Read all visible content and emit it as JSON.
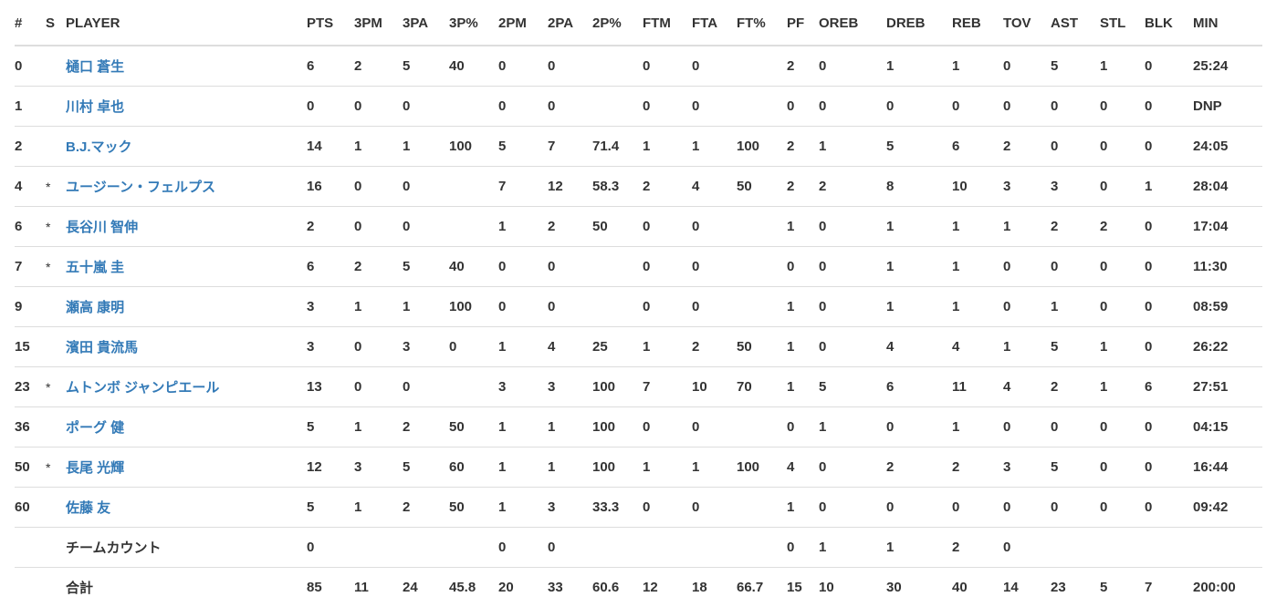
{
  "columns": [
    "#",
    "S",
    "PLAYER",
    "PTS",
    "3PM",
    "3PA",
    "3P%",
    "2PM",
    "2PA",
    "2P%",
    "FTM",
    "FTA",
    "FT%",
    "PF",
    "OREB",
    "DREB",
    "REB",
    "TOV",
    "AST",
    "STL",
    "BLK",
    "MIN"
  ],
  "link_color": "#337ab7",
  "rows": [
    {
      "no": "0",
      "s": "",
      "player": "樋口 蒼生",
      "link": true,
      "stats": [
        "6",
        "2",
        "5",
        "40",
        "0",
        "0",
        "",
        "0",
        "0",
        "",
        "2",
        "0",
        "1",
        "1",
        "0",
        "5",
        "1",
        "0",
        "25:24"
      ]
    },
    {
      "no": "1",
      "s": "",
      "player": "川村 卓也",
      "link": true,
      "stats": [
        "0",
        "0",
        "0",
        "",
        "0",
        "0",
        "",
        "0",
        "0",
        "",
        "0",
        "0",
        "0",
        "0",
        "0",
        "0",
        "0",
        "0",
        "DNP"
      ]
    },
    {
      "no": "2",
      "s": "",
      "player": "B.J.マック",
      "link": true,
      "stats": [
        "14",
        "1",
        "1",
        "100",
        "5",
        "7",
        "71.4",
        "1",
        "1",
        "100",
        "2",
        "1",
        "5",
        "6",
        "2",
        "0",
        "0",
        "0",
        "24:05"
      ]
    },
    {
      "no": "4",
      "s": "*",
      "player": "ユージーン・フェルプス",
      "link": true,
      "stats": [
        "16",
        "0",
        "0",
        "",
        "7",
        "12",
        "58.3",
        "2",
        "4",
        "50",
        "2",
        "2",
        "8",
        "10",
        "3",
        "3",
        "0",
        "1",
        "28:04"
      ]
    },
    {
      "no": "6",
      "s": "*",
      "player": "長谷川 智伸",
      "link": true,
      "stats": [
        "2",
        "0",
        "0",
        "",
        "1",
        "2",
        "50",
        "0",
        "0",
        "",
        "1",
        "0",
        "1",
        "1",
        "1",
        "2",
        "2",
        "0",
        "17:04"
      ]
    },
    {
      "no": "7",
      "s": "*",
      "player": "五十嵐 圭",
      "link": true,
      "stats": [
        "6",
        "2",
        "5",
        "40",
        "0",
        "0",
        "",
        "0",
        "0",
        "",
        "0",
        "0",
        "1",
        "1",
        "0",
        "0",
        "0",
        "0",
        "11:30"
      ]
    },
    {
      "no": "9",
      "s": "",
      "player": "瀬高 康明",
      "link": true,
      "stats": [
        "3",
        "1",
        "1",
        "100",
        "0",
        "0",
        "",
        "0",
        "0",
        "",
        "1",
        "0",
        "1",
        "1",
        "0",
        "1",
        "0",
        "0",
        "08:59"
      ]
    },
    {
      "no": "15",
      "s": "",
      "player": "濱田 貴流馬",
      "link": true,
      "stats": [
        "3",
        "0",
        "3",
        "0",
        "1",
        "4",
        "25",
        "1",
        "2",
        "50",
        "1",
        "0",
        "4",
        "4",
        "1",
        "5",
        "1",
        "0",
        "26:22"
      ]
    },
    {
      "no": "23",
      "s": "*",
      "player": "ムトンボ ジャンピエール",
      "link": true,
      "stats": [
        "13",
        "0",
        "0",
        "",
        "3",
        "3",
        "100",
        "7",
        "10",
        "70",
        "1",
        "5",
        "6",
        "11",
        "4",
        "2",
        "1",
        "6",
        "27:51"
      ]
    },
    {
      "no": "36",
      "s": "",
      "player": "ポーグ 健",
      "link": true,
      "stats": [
        "5",
        "1",
        "2",
        "50",
        "1",
        "1",
        "100",
        "0",
        "0",
        "",
        "0",
        "1",
        "0",
        "1",
        "0",
        "0",
        "0",
        "0",
        "04:15"
      ]
    },
    {
      "no": "50",
      "s": "*",
      "player": "長尾 光輝",
      "link": true,
      "stats": [
        "12",
        "3",
        "5",
        "60",
        "1",
        "1",
        "100",
        "1",
        "1",
        "100",
        "4",
        "0",
        "2",
        "2",
        "3",
        "5",
        "0",
        "0",
        "16:44"
      ]
    },
    {
      "no": "60",
      "s": "",
      "player": "佐藤 友",
      "link": true,
      "stats": [
        "5",
        "1",
        "2",
        "50",
        "1",
        "3",
        "33.3",
        "0",
        "0",
        "",
        "1",
        "0",
        "0",
        "0",
        "0",
        "0",
        "0",
        "0",
        "09:42"
      ]
    },
    {
      "no": "",
      "s": "",
      "player": "チームカウント",
      "link": false,
      "stats": [
        "0",
        "",
        "",
        "",
        "0",
        "0",
        "",
        "",
        "",
        "",
        "0",
        "1",
        "1",
        "2",
        "0",
        "",
        "",
        "",
        ""
      ]
    },
    {
      "no": "",
      "s": "",
      "player": "合計",
      "link": false,
      "stats": [
        "85",
        "11",
        "24",
        "45.8",
        "20",
        "33",
        "60.6",
        "12",
        "18",
        "66.7",
        "15",
        "10",
        "30",
        "40",
        "14",
        "23",
        "5",
        "7",
        "200:00"
      ]
    }
  ]
}
